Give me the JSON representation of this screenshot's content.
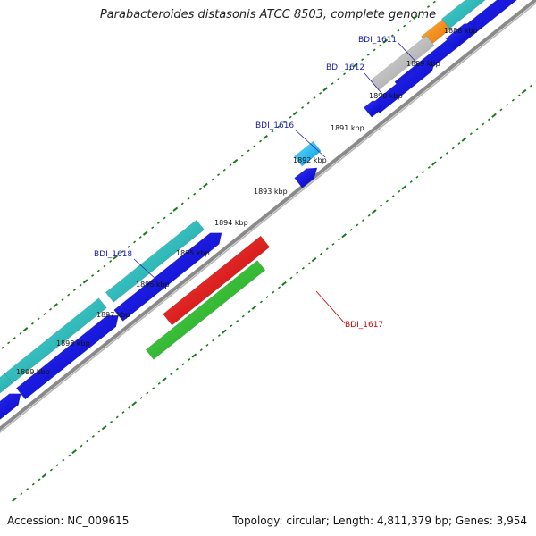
{
  "title": "Parabacteroides distasonis ATCC 8503, complete genome",
  "footer": {
    "accession": "Accession: NC_009615",
    "summary": "Topology: circular; Length: 4,811,379 bp; Genes: 3,954"
  },
  "colors": {
    "backbone": "#8a8a8a",
    "tick": "#1a7a1a",
    "label_blue": "#1a1aaa",
    "label_red": "#cc0000",
    "leader_blue": "#2222aa",
    "leader_red": "#cc0000"
  },
  "axis_labels": [
    {
      "text": "1888 kbp"
    },
    {
      "text": "1889 kbp"
    },
    {
      "text": "1890 kbp"
    },
    {
      "text": "1891 kbp"
    },
    {
      "text": "1892 kbp"
    },
    {
      "text": "1893 kbp"
    },
    {
      "text": "1894 kbp"
    },
    {
      "text": "1895 kbp"
    },
    {
      "text": "1896 kbp"
    },
    {
      "text": "1897 kbp"
    },
    {
      "text": "1898 kbp"
    },
    {
      "text": "1899 kbp"
    }
  ],
  "gene_labels": [
    {
      "text": "BDI_1611",
      "color": "#1a1aaa"
    },
    {
      "text": "BDI_1612",
      "color": "#1a1aaa"
    },
    {
      "text": "BDI_1616",
      "color": "#1a1aaa"
    },
    {
      "text": "BDI_1618",
      "color": "#1a1aaa"
    },
    {
      "text": "BDI_1617",
      "color": "#cc0000"
    }
  ]
}
